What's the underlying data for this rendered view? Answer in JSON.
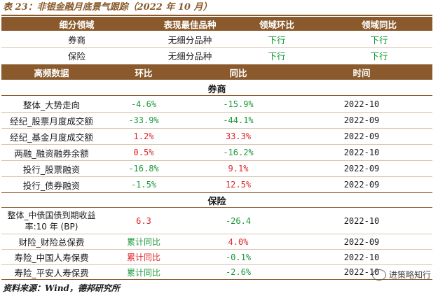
{
  "title": "表 23：非银金融月底景气跟踪（2022 年 10 月）",
  "top_table": {
    "headers": [
      "细分领域",
      "表现最佳品种",
      "领域环比",
      "领域同比"
    ],
    "rows": [
      {
        "field": "券商",
        "best": "无细分品种",
        "mom": "下行",
        "yoy": "下行"
      },
      {
        "field": "保险",
        "best": "无细分品种",
        "mom": "下行",
        "yoy": "下行"
      }
    ]
  },
  "hf_table": {
    "headers": [
      "高频数据",
      "环比",
      "同比",
      "时间"
    ],
    "sections": [
      {
        "name": "券商",
        "rows": [
          {
            "item": "整体_大势走向",
            "mom": "-4.6%",
            "yoy": "-15.9%",
            "time": "2022-10"
          },
          {
            "item": "经纪_股票月度成交额",
            "mom": "-33.9%",
            "yoy": "-44.1%",
            "time": "2022-09"
          },
          {
            "item": "经纪_基金月度成交额",
            "mom": "1.2%",
            "yoy": "33.3%",
            "time": "2022-09"
          },
          {
            "item": "两融_融资融券余额",
            "mom": "0.5%",
            "yoy": "-16.2%",
            "time": "2022-10"
          },
          {
            "item": "投行_股票融资",
            "mom": "-16.8%",
            "yoy": "9.1%",
            "time": "2022-09"
          },
          {
            "item": "投行_债券融资",
            "mom": "-1.5%",
            "yoy": "12.5%",
            "time": "2022-09"
          }
        ]
      },
      {
        "name": "保险",
        "rows": [
          {
            "item": "整体_中债国债到期收益率:10 年 (BP)",
            "mom": "6.3",
            "yoy": "-26.4",
            "time": "2022-10"
          },
          {
            "item": "财险_财险总保费",
            "mom": "累计同比",
            "yoy": "4.0%",
            "time": "2022-09"
          },
          {
            "item": "寿险_中国人寿保费",
            "mom": "累计同比",
            "yoy": "-0.1%",
            "time": "2022-10"
          },
          {
            "item": "寿险_平安人寿保费",
            "mom": "累计同比",
            "yoy": "-2.6%",
            "time": "2022-10"
          }
        ]
      }
    ]
  },
  "source": "资料来源：Wind，德邦研究所",
  "watermark": "进策略知行",
  "colors": {
    "brown": "#8a5a2c",
    "up": "#e0262b",
    "down": "#1a9a3a"
  }
}
